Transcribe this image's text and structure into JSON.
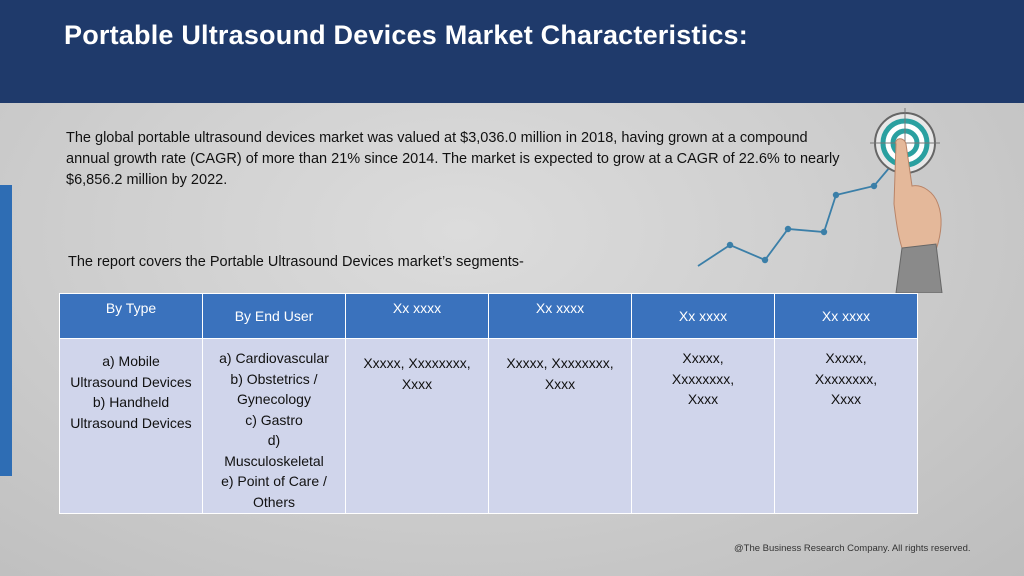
{
  "header": {
    "title": "Portable Ultrasound Devices Market Characteristics:"
  },
  "intro_text": "The global portable ultrasound devices market was valued at $3,036.0 million in 2018, having grown at a compound annual growth rate (CAGR) of more than 21% since 2014. The market is expected to grow at a CAGR of 22.6% to nearly $6,856.2 million by 2022.",
  "segments_intro": "The report covers the Portable Ultrasound Devices market’s segments-",
  "table": {
    "headers": [
      "By Type",
      "By End User",
      "Xx xxxx",
      "Xx xxxx",
      "Xx xxxx",
      "Xx xxxx"
    ],
    "cells": [
      [
        "a) Mobile",
        "Ultrasound Devices",
        "b) Handheld",
        "Ultrasound Devices"
      ],
      [
        "a) Cardiovascular",
        "b) Obstetrics /",
        "Gynecology",
        "c) Gastro",
        "d)",
        "Musculoskeletal",
        "e) Point of Care /",
        "Others"
      ],
      [
        "Xxxxx, Xxxxxxxx,",
        "Xxxx"
      ],
      [
        "Xxxxx, Xxxxxxxx,",
        "Xxxx"
      ],
      [
        "Xxxxx,",
        "Xxxxxxxx,",
        "Xxxx"
      ],
      [
        "Xxxxx,",
        "Xxxxxxxx,",
        "Xxxx"
      ]
    ]
  },
  "footer": {
    "copyright": "@The Business Research Company. All rights reserved."
  },
  "colors": {
    "header_bg": "#1f3a6b",
    "table_header": "#3a72bd",
    "table_cell": "#d0d5eb",
    "accent": "#2e6db4",
    "line": "#3b7fa8"
  },
  "icons": {
    "graphic": "growth-chart-target-hand-icon"
  }
}
